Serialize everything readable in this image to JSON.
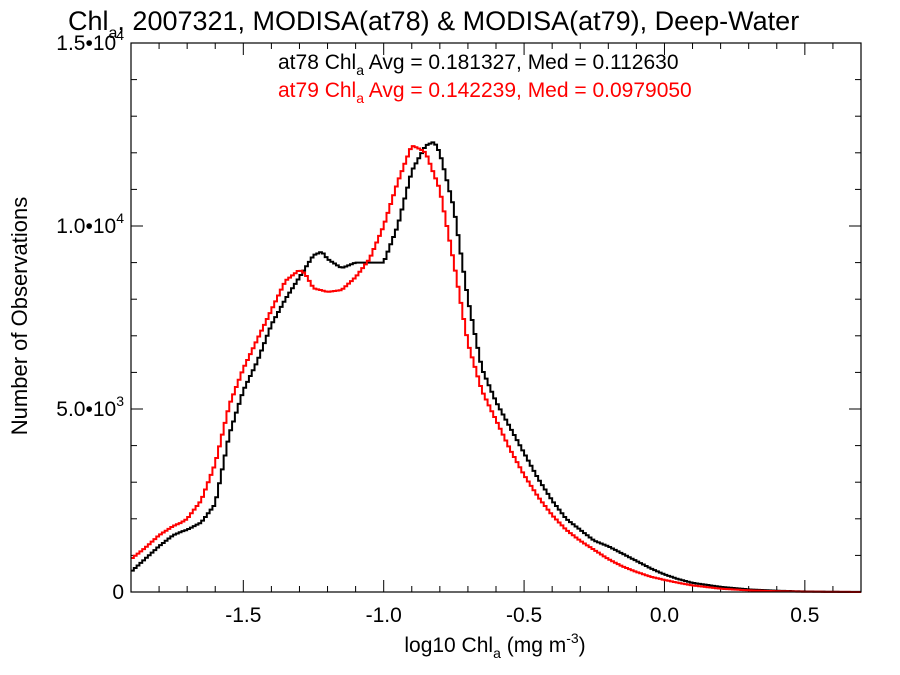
{
  "chart_data": {
    "type": "line",
    "title": {
      "main": "Chl",
      "sub": "a",
      "rest": ", 2007321, MODISA(at78) & MODISA(at79), Deep-Water"
    },
    "xlabel": {
      "pre": "log10 Chl",
      "sub": "a",
      "mid": " (mg m",
      "sup": "-3",
      "post": ")"
    },
    "ylabel": "Number of Observations",
    "xlim": [
      -1.9,
      0.7
    ],
    "ylim": [
      0,
      15000
    ],
    "xticks": [
      {
        "value": -1.5,
        "label": "-1.5"
      },
      {
        "value": -1.0,
        "label": "-1.0"
      },
      {
        "value": -0.5,
        "label": "-0.5"
      },
      {
        "value": 0.0,
        "label": "0.0"
      },
      {
        "value": 0.5,
        "label": "0.5"
      }
    ],
    "yticks": [
      {
        "value": 0,
        "mant": "0",
        "exp": ""
      },
      {
        "value": 5000,
        "mant": "5.0•10",
        "exp": "3"
      },
      {
        "value": 10000,
        "mant": "1.0•10",
        "exp": "4"
      },
      {
        "value": 15000,
        "mant": "1.5•10",
        "exp": "4"
      }
    ],
    "series": [
      {
        "name": "at78",
        "color": "#000000",
        "annotation": {
          "pre": "at78 Chl",
          "sub": "a",
          "post": " Avg = 0.181327, Med = 0.112630"
        },
        "x": [
          -1.9,
          -1.85,
          -1.8,
          -1.75,
          -1.72,
          -1.7,
          -1.65,
          -1.6,
          -1.55,
          -1.5,
          -1.45,
          -1.4,
          -1.35,
          -1.3,
          -1.25,
          -1.22,
          -1.2,
          -1.15,
          -1.1,
          -1.05,
          -1.0,
          -0.95,
          -0.9,
          -0.85,
          -0.82,
          -0.8,
          -0.75,
          -0.7,
          -0.65,
          -0.6,
          -0.55,
          -0.5,
          -0.45,
          -0.4,
          -0.35,
          -0.3,
          -0.25,
          -0.2,
          -0.15,
          -0.1,
          -0.05,
          0.0,
          0.05,
          0.1,
          0.2,
          0.3,
          0.4,
          0.5,
          0.6,
          0.7
        ],
        "y": [
          550,
          900,
          1250,
          1550,
          1650,
          1700,
          1900,
          2400,
          4300,
          5500,
          6300,
          7300,
          8000,
          8600,
          9200,
          9300,
          9100,
          8850,
          9000,
          9000,
          9000,
          10000,
          11500,
          12200,
          12300,
          12000,
          10500,
          8000,
          6100,
          5200,
          4500,
          3800,
          3100,
          2500,
          2000,
          1700,
          1400,
          1250,
          1050,
          850,
          650,
          480,
          350,
          250,
          140,
          70,
          35,
          15,
          6,
          2
        ]
      },
      {
        "name": "at79",
        "color": "#ff0000",
        "annotation": {
          "pre": "at79 Chl",
          "sub": "a",
          "post": " Avg = 0.142239, Med = 0.0979050"
        },
        "x": [
          -1.9,
          -1.85,
          -1.8,
          -1.75,
          -1.72,
          -1.7,
          -1.65,
          -1.6,
          -1.55,
          -1.5,
          -1.45,
          -1.4,
          -1.35,
          -1.3,
          -1.28,
          -1.25,
          -1.2,
          -1.15,
          -1.1,
          -1.05,
          -1.0,
          -0.95,
          -0.9,
          -0.87,
          -0.85,
          -0.8,
          -0.75,
          -0.7,
          -0.65,
          -0.6,
          -0.55,
          -0.5,
          -0.45,
          -0.4,
          -0.35,
          -0.3,
          -0.25,
          -0.2,
          -0.15,
          -0.1,
          -0.05,
          0.0,
          0.05,
          0.1,
          0.2,
          0.3,
          0.4,
          0.5,
          0.6,
          0.7
        ],
        "y": [
          900,
          1200,
          1550,
          1800,
          1900,
          2000,
          2500,
          3500,
          5100,
          6100,
          6900,
          7700,
          8500,
          8800,
          8700,
          8300,
          8200,
          8250,
          8600,
          9100,
          10000,
          11200,
          12200,
          12100,
          12000,
          11000,
          9000,
          6800,
          5500,
          4700,
          3900,
          3200,
          2600,
          2100,
          1700,
          1400,
          1150,
          900,
          700,
          550,
          420,
          330,
          250,
          180,
          90,
          45,
          20,
          8,
          3,
          1
        ]
      }
    ]
  }
}
